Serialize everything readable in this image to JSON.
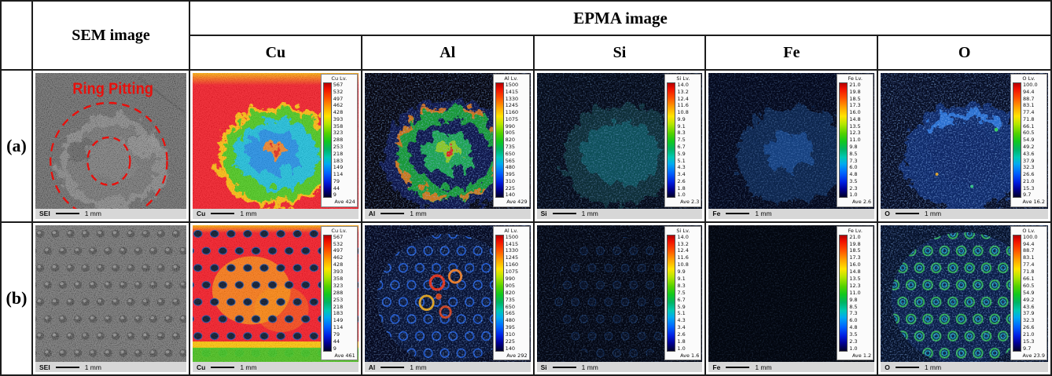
{
  "figure": {
    "sem_header": "SEM image",
    "epma_header": "EPMA image",
    "element_headers": [
      "Cu",
      "Al",
      "Si",
      "Fe",
      "O"
    ]
  },
  "colorbars": {
    "cu": {
      "title": "Cu Lv.",
      "ticks": [
        "567",
        "532",
        "497",
        "462",
        "428",
        "393",
        "358",
        "323",
        "288",
        "253",
        "218",
        "183",
        "149",
        "114",
        "79",
        "44",
        "9"
      ]
    },
    "al": {
      "title": "Al Lv.",
      "ticks": [
        "1500",
        "1415",
        "1330",
        "1245",
        "1160",
        "1075",
        "990",
        "905",
        "820",
        "735",
        "650",
        "565",
        "480",
        "395",
        "310",
        "225",
        "140"
      ]
    },
    "si": {
      "title": "Si Lv.",
      "ticks": [
        "14.0",
        "13.2",
        "12.4",
        "11.6",
        "10.8",
        "9.9",
        "9.1",
        "8.3",
        "7.5",
        "6.7",
        "5.9",
        "5.1",
        "4.3",
        "3.4",
        "2.6",
        "1.8",
        "1.0"
      ]
    },
    "fe": {
      "title": "Fe Lv.",
      "ticks": [
        "21.0",
        "19.8",
        "18.5",
        "17.3",
        "16.0",
        "14.8",
        "13.5",
        "12.3",
        "11.0",
        "9.8",
        "8.5",
        "7.3",
        "6.0",
        "4.8",
        "3.5",
        "2.3",
        "1.0"
      ]
    },
    "o": {
      "title": "O Lv.",
      "ticks": [
        "100.0",
        "94.4",
        "88.7",
        "83.1",
        "77.4",
        "71.8",
        "66.1",
        "60.5",
        "54.9",
        "49.2",
        "43.6",
        "37.9",
        "32.3",
        "26.6",
        "21.0",
        "15.3",
        "9.7"
      ]
    }
  },
  "rows": [
    {
      "label": "(a)",
      "sem": {
        "annotation": "Ring Pitting",
        "scale_label": "SEI",
        "scale_value": "1 mm"
      },
      "maps": [
        {
          "element": "Cu",
          "ave": "Ave 424",
          "scale_label": "Cu",
          "scale_value": "1 mm"
        },
        {
          "element": "Al",
          "ave": "Ave 429",
          "scale_label": "Al",
          "scale_value": "1 mm"
        },
        {
          "element": "Si",
          "ave": "Ave 2.3",
          "scale_label": "Si",
          "scale_value": "1 mm"
        },
        {
          "element": "Fe",
          "ave": "Ave 2.6",
          "scale_label": "Fe",
          "scale_value": "1 mm"
        },
        {
          "element": "O",
          "ave": "Ave 16.2",
          "scale_label": "O",
          "scale_value": "1 mm"
        }
      ]
    },
    {
      "label": "(b)",
      "sem": {
        "scale_label": "SEI",
        "scale_value": "1 mm"
      },
      "maps": [
        {
          "element": "Cu",
          "ave": "Ave 461",
          "scale_label": "Cu",
          "scale_value": "1 mm"
        },
        {
          "element": "Al",
          "ave": "Ave 292",
          "scale_label": "Al",
          "scale_value": "1 mm"
        },
        {
          "element": "Si",
          "ave": "Ave 1.6",
          "scale_label": "Si",
          "scale_value": "1 mm"
        },
        {
          "element": "Fe",
          "ave": "Ave 1.2",
          "scale_label": "Fe",
          "scale_value": "1 mm"
        },
        {
          "element": "O",
          "ave": "Ave 23.9",
          "scale_label": "O",
          "scale_value": "1 mm"
        }
      ]
    }
  ],
  "colors": {
    "annotation_red": "#e8100c",
    "cu_background_red": "#f51420",
    "table_border": "#1c1c1c"
  }
}
